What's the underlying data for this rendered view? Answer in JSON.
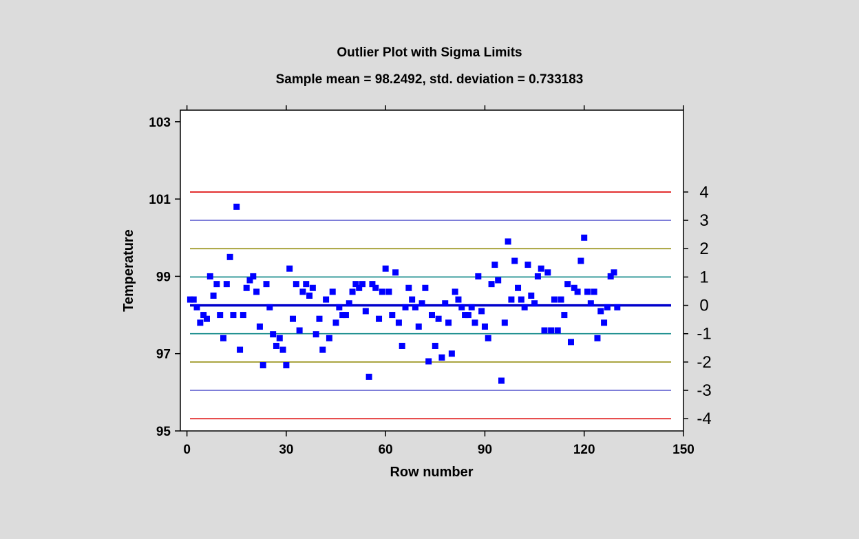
{
  "chart_data": {
    "type": "scatter",
    "title": "Outlier Plot with Sigma Limits",
    "subtitle": "Sample mean = 98.2492, std. deviation = 0.733183",
    "xlabel": "Row number",
    "ylabel": "Temperature",
    "xlim": [
      -2,
      150
    ],
    "ylim": [
      95,
      103.3
    ],
    "x_ticks": [
      0,
      30,
      60,
      90,
      120,
      150
    ],
    "y_ticks": [
      95,
      97,
      99,
      101,
      103
    ],
    "mean": 98.2492,
    "std": 0.733183,
    "sigma_levels": [
      4,
      3,
      2,
      1,
      0,
      -1,
      -2,
      -3,
      -4
    ],
    "sigma_labels": [
      "4",
      "3",
      "2",
      "1",
      "0",
      "-1",
      "-2",
      "-3",
      "-4"
    ],
    "sigma_colors": {
      "4": "#e02020",
      "3": "#7b7bd8",
      "2": "#9c9620",
      "1": "#1f8f8f",
      "0": "#0000cc",
      "-1": "#1f8f8f",
      "-2": "#9c9620",
      "-3": "#7b7bd8",
      "-4": "#e02020"
    },
    "point_color": "#0000ff",
    "grid": false,
    "values": [
      98.4,
      98.4,
      98.2,
      97.8,
      98.0,
      97.9,
      99.0,
      98.5,
      98.8,
      98.0,
      97.4,
      98.8,
      99.5,
      98.0,
      100.8,
      97.1,
      98.0,
      98.7,
      98.9,
      99.0,
      98.6,
      97.7,
      96.7,
      98.8,
      98.2,
      97.5,
      97.2,
      97.4,
      97.1,
      96.7,
      99.2,
      97.9,
      98.8,
      97.6,
      98.6,
      98.8,
      98.5,
      98.7,
      97.5,
      97.9,
      97.1,
      98.4,
      97.4,
      98.6,
      97.8,
      98.2,
      98.0,
      98.0,
      98.3,
      98.6,
      98.8,
      98.7,
      98.8,
      98.1,
      96.4,
      98.8,
      98.7,
      97.9,
      98.6,
      99.2,
      98.6,
      98.0,
      99.1,
      97.8,
      97.2,
      98.2,
      98.7,
      98.4,
      98.2,
      97.7,
      98.3,
      98.7,
      96.8,
      98.0,
      97.2,
      97.9,
      96.9,
      98.3,
      97.8,
      97.0,
      98.6,
      98.4,
      98.2,
      98.0,
      98.0,
      98.2,
      97.8,
      99.0,
      98.1,
      97.7,
      97.4,
      98.8,
      99.3,
      98.9,
      96.3,
      97.8,
      99.9,
      98.4,
      99.4,
      98.7,
      98.4,
      98.2,
      99.3,
      98.5,
      98.3,
      99.0,
      99.2,
      97.6,
      99.1,
      97.6,
      98.4,
      97.6,
      98.4,
      98.0,
      98.8,
      97.3,
      98.7,
      98.6,
      99.4,
      100.0,
      98.6,
      98.3,
      98.6,
      97.4,
      98.1,
      97.8,
      98.2,
      99.0,
      99.1,
      98.2
    ]
  }
}
